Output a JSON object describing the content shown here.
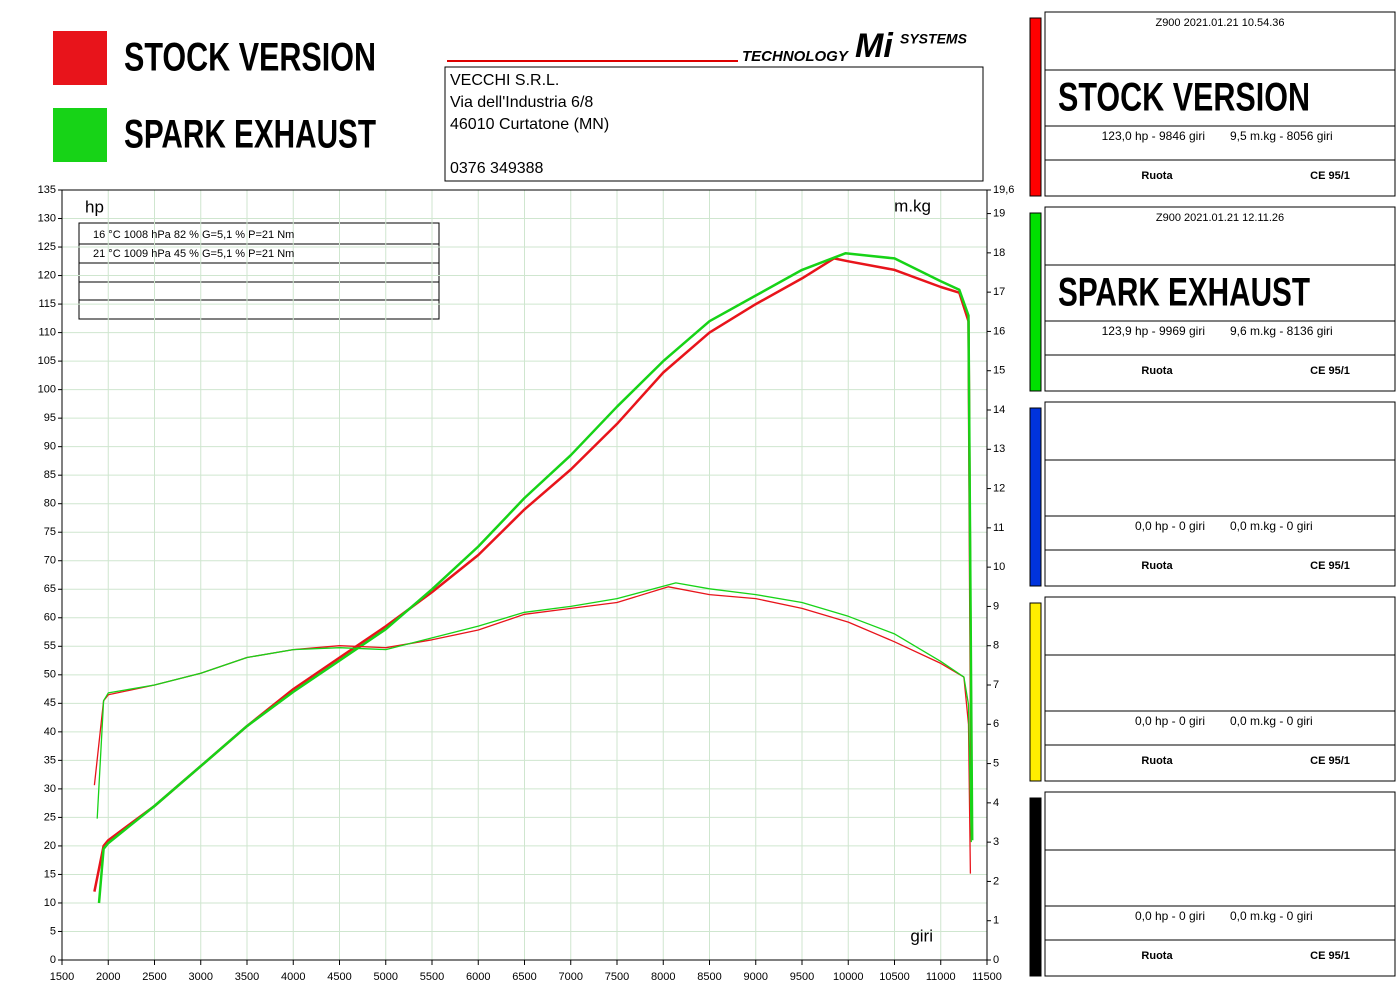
{
  "chart_data": {
    "type": "line",
    "xlabel": "giri",
    "ylabel": "hp",
    "y2label": "m.kg",
    "xlim": [
      1500,
      11500
    ],
    "xticks": [
      1500,
      2000,
      2500,
      3000,
      3500,
      4000,
      4500,
      5000,
      5500,
      6000,
      6500,
      7000,
      7500,
      8000,
      8500,
      9000,
      9500,
      10000,
      10500,
      11000,
      11500
    ],
    "ylim": [
      0,
      135
    ],
    "yticks": [
      0,
      5,
      10,
      15,
      20,
      25,
      30,
      35,
      40,
      45,
      50,
      55,
      60,
      65,
      70,
      75,
      80,
      85,
      90,
      95,
      100,
      105,
      110,
      115,
      120,
      125,
      130,
      135
    ],
    "y2lim": [
      0,
      19.6
    ],
    "y2ticks": [
      0,
      1,
      2,
      3,
      4,
      5,
      6,
      7,
      8,
      9,
      10,
      11,
      12,
      13,
      14,
      15,
      16,
      17,
      18,
      19,
      {
        "value": 19.6,
        "label": "19,6"
      }
    ],
    "grid": true,
    "series": [
      {
        "name": "STOCK VERSION",
        "color": "#e8141b",
        "width": 2.5,
        "x": [
          1850,
          1950,
          2000,
          2500,
          3000,
          3500,
          4000,
          4500,
          5000,
          5500,
          6000,
          6500,
          7000,
          7500,
          8000,
          8500,
          9000,
          9500,
          9846,
          10000,
          10500,
          11000,
          11200,
          11300,
          11330
        ],
        "values": [
          12,
          20,
          21,
          27,
          34,
          41,
          47.5,
          53,
          58.5,
          64.5,
          71,
          79,
          86,
          94,
          103,
          110,
          115,
          119.5,
          123,
          122.5,
          121,
          118,
          117,
          112,
          33
        ]
      },
      {
        "name": "SPARK EXHAUST",
        "color": "#17d317",
        "width": 2.5,
        "x": [
          1900,
          1950,
          2000,
          2500,
          3000,
          3500,
          4000,
          4500,
          5000,
          5500,
          6000,
          6500,
          7000,
          7500,
          8000,
          8500,
          9000,
          9500,
          9969,
          10500,
          11000,
          11200,
          11300,
          11340
        ],
        "values": [
          10,
          19.5,
          20.5,
          27,
          34,
          41,
          47,
          52.5,
          58,
          65,
          72.5,
          81,
          88.5,
          97,
          105,
          112,
          116.5,
          121,
          123.9,
          123,
          119,
          117.5,
          113,
          21
        ]
      },
      {
        "color": "#e8141b",
        "width": 1.3,
        "axis": "y2",
        "x": [
          1850,
          1950,
          2000,
          2500,
          3000,
          3500,
          4000,
          4500,
          5000,
          5500,
          6000,
          6500,
          7000,
          7500,
          8056,
          8500,
          9000,
          9500,
          10000,
          10500,
          11000,
          11250,
          11300,
          11320
        ],
        "values": [
          4.45,
          6.6,
          6.75,
          7.0,
          7.3,
          7.7,
          7.9,
          8.0,
          7.95,
          8.15,
          8.4,
          8.8,
          8.95,
          9.1,
          9.5,
          9.3,
          9.2,
          8.95,
          8.6,
          8.1,
          7.55,
          7.2,
          6.0,
          2.2
        ]
      },
      {
        "color": "#17d317",
        "width": 1.3,
        "axis": "y2",
        "x": [
          1880,
          1950,
          2000,
          2500,
          3000,
          3500,
          4000,
          4500,
          5000,
          5500,
          6000,
          6500,
          7000,
          7500,
          8136,
          8500,
          9000,
          9500,
          10000,
          10500,
          11000,
          11250,
          11300,
          11330
        ],
        "values": [
          3.6,
          6.6,
          6.8,
          7.0,
          7.3,
          7.7,
          7.9,
          7.95,
          7.9,
          8.2,
          8.5,
          8.85,
          9.0,
          9.2,
          9.6,
          9.45,
          9.3,
          9.1,
          8.75,
          8.3,
          7.6,
          7.2,
          6.5,
          3.0
        ]
      }
    ]
  },
  "logo": {
    "left": "TECHNOLOGY",
    "mark": "Mi",
    "right": "SYSTEMS"
  },
  "company": [
    "VECCHI S.R.L.",
    "Via dell'Industria 6/8",
    "46010 Curtatone (MN)",
    "0376 349388"
  ],
  "conditions": [
    "16 °C   1008 hPa   82 %   G=5,1 %   P=21 Nm",
    "21 °C   1009 hPa   45 %   G=5,1 %   P=21 Nm"
  ],
  "panels": [
    {
      "color": "#ff0000",
      "header": "Z900   2021.01.21 10.54.36",
      "name": "STOCK VERSION",
      "stats": [
        "123,0 hp - 9846 giri",
        "9,5 m.kg - 8056 giri"
      ],
      "footer": [
        "Ruota",
        "CE 95/1"
      ]
    },
    {
      "color": "#00e000",
      "header": "Z900   2021.01.21 12.11.26",
      "name": "SPARK EXHAUST",
      "stats": [
        "123,9 hp - 9969 giri",
        "9,6 m.kg - 8136 giri"
      ],
      "footer": [
        "Ruota",
        "CE 95/1"
      ]
    },
    {
      "color": "#0033dd",
      "stats": [
        "0,0 hp - 0 giri",
        "0,0 m.kg - 0 giri"
      ],
      "footer": [
        "Ruota",
        "CE 95/1"
      ]
    },
    {
      "color": "#ffee00",
      "stats": [
        "0,0 hp - 0 giri",
        "0,0 m.kg - 0 giri"
      ],
      "footer": [
        "Ruota",
        "CE 95/1"
      ]
    },
    {
      "color": "#000000",
      "stats": [
        "0,0 hp - 0 giri",
        "0,0 m.kg - 0 giri"
      ],
      "footer": [
        "Ruota",
        "CE 95/1"
      ]
    }
  ]
}
